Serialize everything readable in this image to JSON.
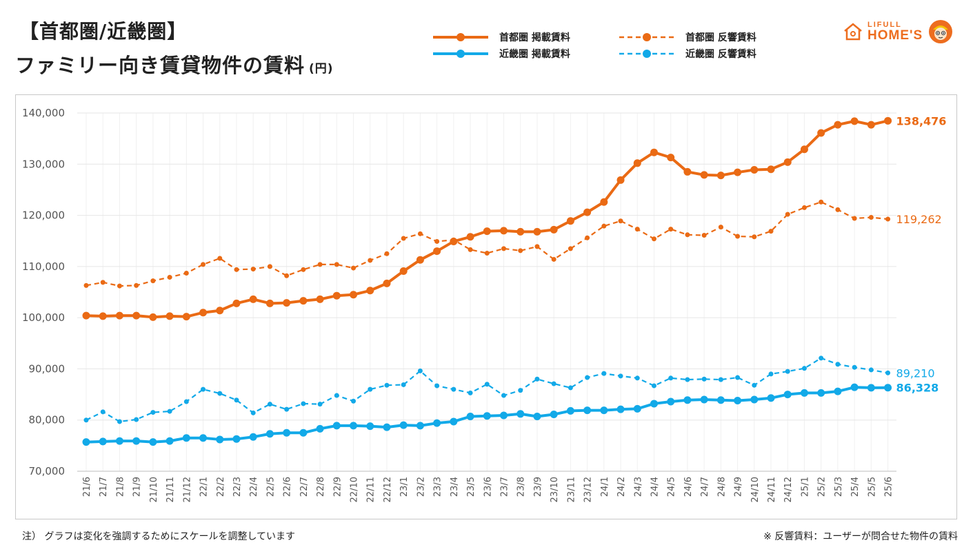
{
  "header": {
    "title_line1": "【首都圏/近畿圏】",
    "title_line2": "ファミリー向き賃貸物件の賃料",
    "title_unit": "(円)"
  },
  "logo": {
    "line1": "LIFULL",
    "line2": "HOME'S",
    "color": "#ed6d1f"
  },
  "legend": {
    "shutoken_listing": "首都圏 掲載賃料",
    "shutoken_response": "首都圏 反響賃料",
    "kinki_listing": "近畿圏 掲載賃料",
    "kinki_response": "近畿圏 反響賃料"
  },
  "notes": {
    "left": "注） グラフは変化を強調するためにスケールを調整しています",
    "right": "※ 反響賃料：ユーザーが問合せた物件の賃料"
  },
  "colors": {
    "orange": "#ea6a14",
    "blue": "#12a9e8",
    "grid": "#e6e6e6",
    "tick": "#555555"
  },
  "chart_data": {
    "type": "line",
    "ylim": [
      70000,
      140000
    ],
    "y_ticks": [
      "70,000",
      "80,000",
      "90,000",
      "100,000",
      "110,000",
      "120,000",
      "130,000",
      "140,000"
    ],
    "categories": [
      "21/6",
      "21/7",
      "21/8",
      "21/9",
      "21/10",
      "21/11",
      "21/12",
      "22/1",
      "22/2",
      "22/3",
      "22/4",
      "22/5",
      "22/6",
      "22/7",
      "22/8",
      "22/9",
      "22/10",
      "22/11",
      "22/12",
      "23/1",
      "23/2",
      "23/3",
      "23/4",
      "23/5",
      "23/6",
      "23/7",
      "23/8",
      "23/9",
      "23/10",
      "23/11",
      "23/12",
      "24/1",
      "24/2",
      "24/3",
      "24/4",
      "24/5",
      "24/6",
      "24/7",
      "24/8",
      "24/9",
      "24/10",
      "24/11",
      "24/12",
      "25/1",
      "25/2",
      "25/3",
      "25/4",
      "25/5",
      "25/6"
    ],
    "series": [
      {
        "name": "首都圏 掲載賃料",
        "color": "#ea6a14",
        "style": "solid",
        "end_label": "138,476",
        "values": [
          100400,
          100300,
          100400,
          100400,
          100100,
          100300,
          100200,
          101000,
          101400,
          102800,
          103600,
          102800,
          102900,
          103300,
          103600,
          104300,
          104500,
          105300,
          106700,
          109100,
          111300,
          113000,
          114900,
          115800,
          116900,
          117000,
          116800,
          116800,
          117200,
          118900,
          120600,
          122600,
          126900,
          130200,
          132300,
          131300,
          128500,
          127900,
          127800,
          128400,
          128900,
          129000,
          130400,
          132900,
          136100,
          137700,
          138400,
          137700,
          138476
        ]
      },
      {
        "name": "首都圏 反響賃料",
        "color": "#ea6a14",
        "style": "dashed",
        "end_label": "119,262",
        "values": [
          106300,
          106900,
          106200,
          106300,
          107200,
          107900,
          108700,
          110400,
          111600,
          109400,
          109500,
          110000,
          108200,
          109400,
          110400,
          110400,
          109700,
          111200,
          112500,
          115500,
          116400,
          114900,
          115200,
          113300,
          112600,
          113500,
          113100,
          113900,
          111400,
          113500,
          115600,
          117900,
          118900,
          117300,
          115400,
          117300,
          116200,
          116100,
          117700,
          115900,
          115800,
          116900,
          120200,
          121500,
          122600,
          121100,
          119400,
          119600,
          119262
        ]
      },
      {
        "name": "近畿圏 掲載賃料",
        "color": "#12a9e8",
        "style": "solid",
        "end_label": "86,328",
        "values": [
          75700,
          75800,
          75900,
          75900,
          75700,
          75900,
          76500,
          76500,
          76200,
          76300,
          76700,
          77300,
          77500,
          77500,
          78300,
          78900,
          78900,
          78800,
          78600,
          79000,
          78900,
          79400,
          79700,
          80700,
          80800,
          80900,
          81200,
          80700,
          81100,
          81800,
          81900,
          81900,
          82100,
          82200,
          83200,
          83600,
          83900,
          84000,
          83900,
          83800,
          84000,
          84300,
          85000,
          85300,
          85300,
          85600,
          86400,
          86300,
          86328
        ]
      },
      {
        "name": "近畿圏 反響賃料",
        "color": "#12a9e8",
        "style": "dashed",
        "end_label": "89,210",
        "values": [
          80000,
          81600,
          79700,
          80100,
          81500,
          81700,
          83600,
          86000,
          85200,
          83900,
          81400,
          83100,
          82100,
          83200,
          83100,
          84800,
          83700,
          86000,
          86800,
          86900,
          89600,
          86700,
          86000,
          85300,
          87000,
          84800,
          85800,
          88000,
          87100,
          86300,
          88300,
          89100,
          88600,
          88200,
          86700,
          88200,
          87900,
          88000,
          87900,
          88300,
          86800,
          89000,
          89500,
          90100,
          92100,
          90900,
          90300,
          89800,
          89210
        ]
      }
    ]
  }
}
